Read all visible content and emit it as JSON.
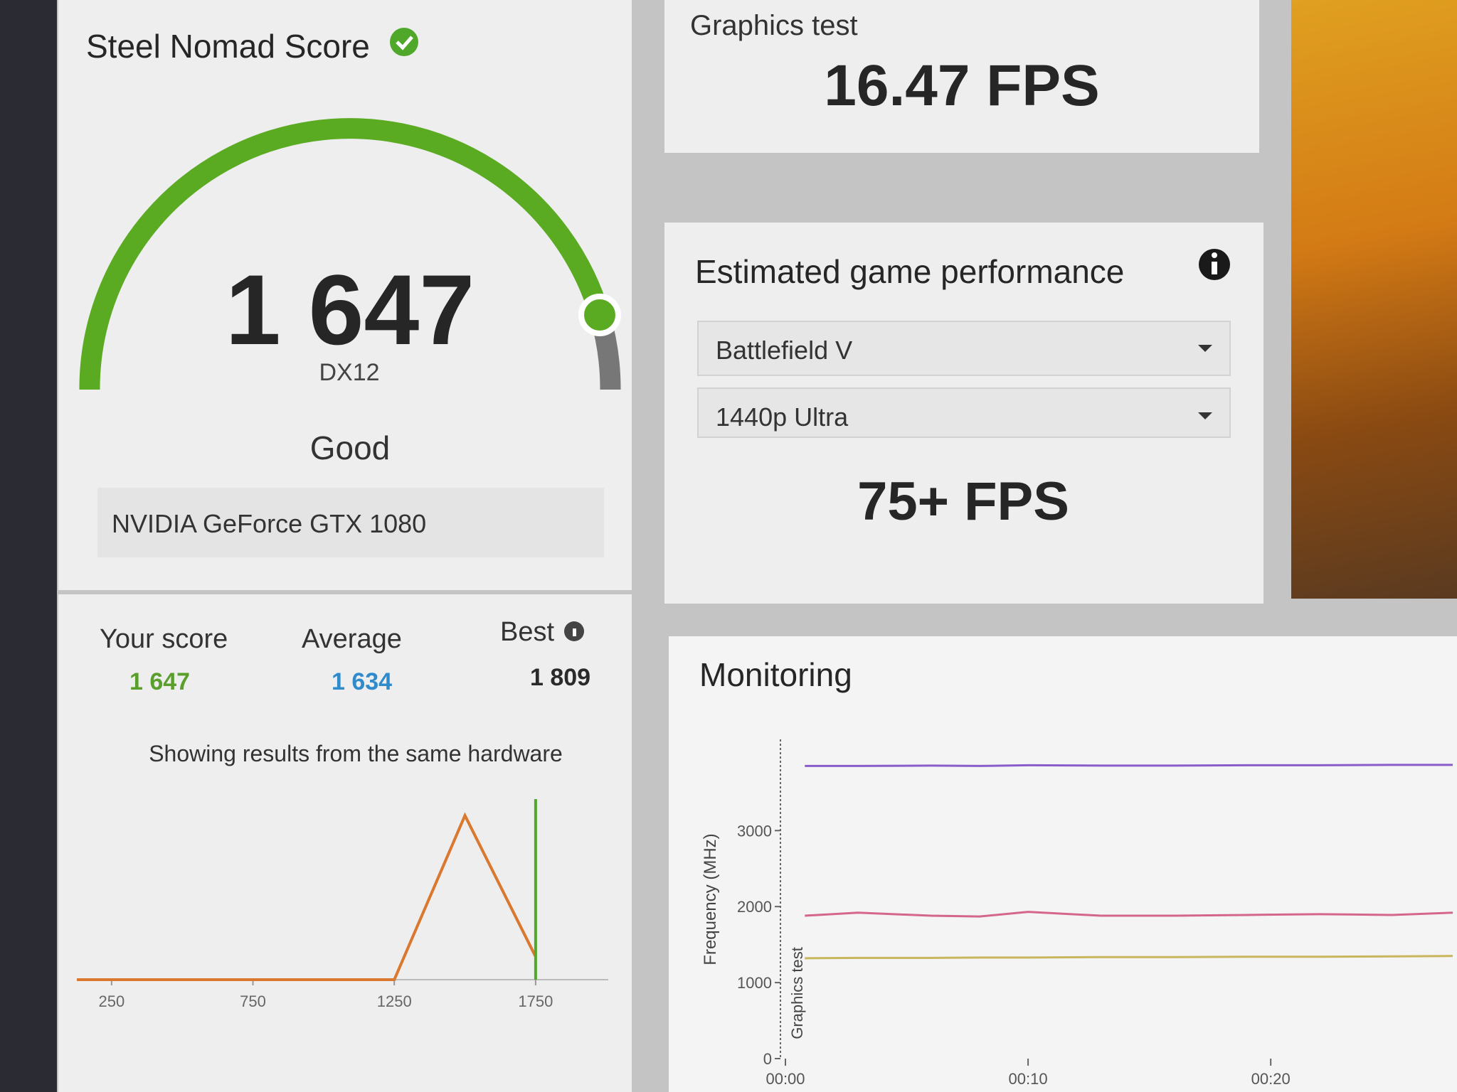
{
  "score_card": {
    "title": "Steel Nomad Score",
    "score": "1 647",
    "api": "DX12",
    "rating": "Good",
    "gpu": "NVIDIA GeForce GTX 1080"
  },
  "graphics_test": {
    "label": "Graphics test",
    "value": "16.47 FPS"
  },
  "game_performance": {
    "title": "Estimated game performance",
    "game": "Battlefield V",
    "preset": "1440p Ultra",
    "fps": "75+ FPS"
  },
  "comparison": {
    "items": [
      {
        "label": "Your score",
        "value": "1 647",
        "color": "#5a9e2c"
      },
      {
        "label": "Average",
        "value": "1 634",
        "color": "#2f8bcc"
      },
      {
        "label": "Best",
        "value": "1 809",
        "color": "#2a2a2a"
      }
    ],
    "note": "Showing results from the same hardware"
  },
  "distribution_chart": {
    "type": "line",
    "x": [
      127,
      1250,
      1500,
      1750
    ],
    "values": [
      0,
      0,
      1,
      0.14
    ],
    "color": "#d9782e",
    "xlim": [
      127,
      2007
    ],
    "ylim": [
      0,
      1.1
    ],
    "xticks": [
      250,
      750,
      1250,
      1750
    ],
    "marker": {
      "x": 1750,
      "color": "#4fa82a"
    }
  },
  "monitoring": {
    "title": "Monitoring",
    "chart": {
      "type": "line",
      "y_label": "Frequency (MHz)",
      "annotation": "Graphics test",
      "xlim": [
        0,
        27.5
      ],
      "ylim": [
        0,
        4200
      ],
      "xticks": [
        {
          "value": 0,
          "label": "00:00"
        },
        {
          "value": 10,
          "label": "00:10"
        },
        {
          "value": 20,
          "label": "00:20"
        }
      ],
      "yticks": [
        0,
        1000,
        2000,
        3000
      ],
      "x": [
        0.8,
        3,
        6,
        8,
        10,
        13,
        16,
        19,
        22,
        25,
        27.5
      ],
      "series": [
        {
          "color": "#8a5cc9",
          "values": [
            3850,
            3850,
            3855,
            3850,
            3860,
            3855,
            3855,
            3860,
            3860,
            3865,
            3865
          ]
        },
        {
          "color": "#d4668c",
          "values": [
            1880,
            1920,
            1880,
            1870,
            1930,
            1880,
            1880,
            1890,
            1900,
            1890,
            1920
          ]
        },
        {
          "color": "#c9b55c",
          "values": [
            1320,
            1325,
            1325,
            1330,
            1330,
            1335,
            1335,
            1340,
            1340,
            1345,
            1350
          ]
        }
      ]
    }
  }
}
